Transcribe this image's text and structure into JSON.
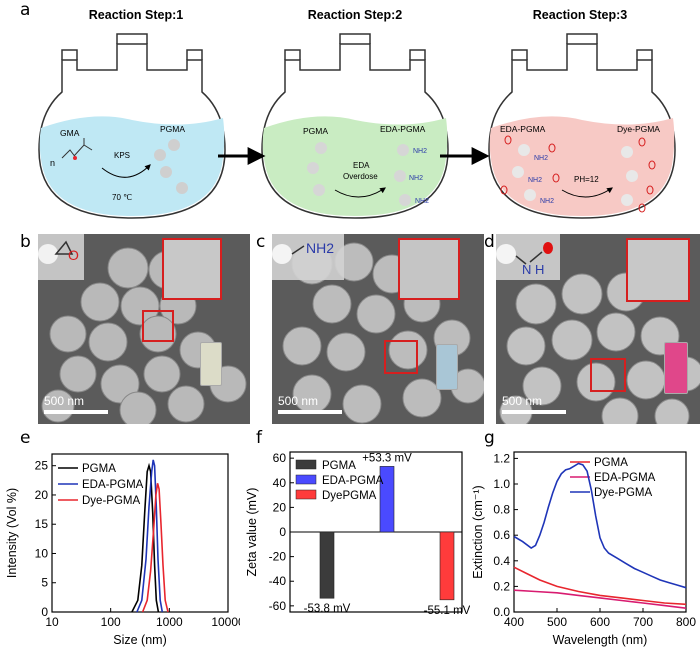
{
  "panel_labels": {
    "a": "a",
    "b": "b",
    "c": "c",
    "d": "d",
    "e": "e",
    "f": "f",
    "g": "g"
  },
  "steps": [
    {
      "title": "Reaction Step:1",
      "left_label": "GMA",
      "right_label": "PGMA",
      "prefix": "n",
      "arrow_top": "KPS",
      "arrow_bottom": "70 ℃",
      "liquid_color": "#bfe8f4"
    },
    {
      "title": "Reaction Step:2",
      "left_label": "PGMA",
      "right_label": "EDA-PGMA",
      "arrow_top": "EDA",
      "arrow_bottom": "Overdose",
      "groups": "NH2",
      "liquid_color": "#c9ecc2"
    },
    {
      "title": "Reaction Step:3",
      "left_label": "EDA-PGMA",
      "right_label": "Dye-PGMA",
      "arrow_top": "PH=12",
      "groups": "NH2",
      "liquid_color": "#f7c9c5"
    }
  ],
  "sem": [
    {
      "scale": "500 nm",
      "group": "O",
      "vial_color": "#dcdcc8"
    },
    {
      "scale": "500 nm",
      "group": "NH2",
      "vial_color": "#a9c6d6"
    },
    {
      "scale": "500 nm",
      "group": "N H",
      "vial_color": "#e0478a"
    }
  ],
  "chart_data": [
    {
      "type": "line",
      "panel": "e",
      "xlabel": "Size (nm)",
      "ylabel": "Intensity (Vol %)",
      "xscale": "log",
      "xlim": [
        10,
        10000
      ],
      "ylim": [
        0,
        27
      ],
      "xticks": [
        "10",
        "100",
        "1000",
        "10000"
      ],
      "yticks": [
        "0",
        "5",
        "10",
        "15",
        "20",
        "25"
      ],
      "legend_position": "top-left",
      "series": [
        {
          "name": "PGMA",
          "color": "#000000",
          "x": [
            230,
            290,
            340,
            380,
            420,
            450,
            480,
            520,
            560,
            600,
            650
          ],
          "y": [
            0,
            2,
            8,
            17,
            24,
            25,
            24,
            17,
            8,
            2,
            0
          ]
        },
        {
          "name": "EDA-PGMA",
          "color": "#1f35b8",
          "x": [
            280,
            340,
            400,
            450,
            500,
            530,
            560,
            600,
            640,
            700,
            760
          ],
          "y": [
            0,
            2,
            9,
            18,
            24,
            26,
            25,
            18,
            9,
            2,
            0
          ]
        },
        {
          "name": "Dye-PGMA",
          "color": "#e8262e",
          "x": [
            350,
            420,
            480,
            540,
            590,
            630,
            670,
            720,
            780,
            850,
            950
          ],
          "y": [
            0,
            2,
            7,
            14,
            20,
            22,
            21,
            15,
            8,
            2,
            0
          ]
        }
      ]
    },
    {
      "type": "bar",
      "panel": "f",
      "ylabel": "Zeta value (mV)",
      "ylim": [
        -65,
        65
      ],
      "yticks": [
        "-60",
        "-40",
        "-20",
        "0",
        "20",
        "40",
        "60"
      ],
      "legend_position": "top-left",
      "series": [
        {
          "name": "PGMA",
          "value": -53.8,
          "label": "-53.8 mV",
          "color": "#3b3b3b"
        },
        {
          "name": "EDA-PGMA",
          "value": 53.3,
          "label": "+53.3 mV",
          "color": "#4a4aff"
        },
        {
          "name": "DyePGMA",
          "value": -55.1,
          "label": "-55.1 mV",
          "color": "#ff3b3b"
        }
      ]
    },
    {
      "type": "line",
      "panel": "g",
      "xlabel": "Wavelength (nm)",
      "ylabel": "Extinction (cm⁻¹)",
      "xlim": [
        400,
        800
      ],
      "ylim": [
        0,
        1.25
      ],
      "xticks": [
        "400",
        "500",
        "600",
        "700",
        "800"
      ],
      "yticks": [
        "0.0",
        "0.2",
        "0.4",
        "0.6",
        "0.8",
        "1.0",
        "1.2"
      ],
      "legend_position": "top-right",
      "series": [
        {
          "name": "PGMA",
          "color": "#e8262e",
          "x": [
            400,
            430,
            460,
            500,
            550,
            600,
            650,
            700,
            750,
            800
          ],
          "y": [
            0.35,
            0.3,
            0.25,
            0.2,
            0.16,
            0.13,
            0.11,
            0.09,
            0.07,
            0.06
          ]
        },
        {
          "name": "EDA-PGMA",
          "color": "#d81b70",
          "x": [
            400,
            450,
            500,
            550,
            600,
            650,
            700,
            750,
            800
          ],
          "y": [
            0.17,
            0.16,
            0.15,
            0.13,
            0.11,
            0.09,
            0.07,
            0.05,
            0.03
          ]
        },
        {
          "name": "Dye-PGMA",
          "color": "#1f35b8",
          "x": [
            400,
            420,
            440,
            450,
            460,
            470,
            480,
            490,
            500,
            510,
            520,
            530,
            540,
            550,
            560,
            570,
            580,
            590,
            600,
            610,
            620,
            640,
            660,
            680,
            700,
            720,
            740,
            760,
            780,
            800
          ],
          "y": [
            0.59,
            0.55,
            0.5,
            0.52,
            0.6,
            0.7,
            0.82,
            0.93,
            1.02,
            1.08,
            1.11,
            1.12,
            1.14,
            1.16,
            1.15,
            1.1,
            0.95,
            0.75,
            0.58,
            0.5,
            0.46,
            0.42,
            0.38,
            0.34,
            0.31,
            0.28,
            0.25,
            0.23,
            0.21,
            0.19
          ]
        }
      ]
    }
  ]
}
